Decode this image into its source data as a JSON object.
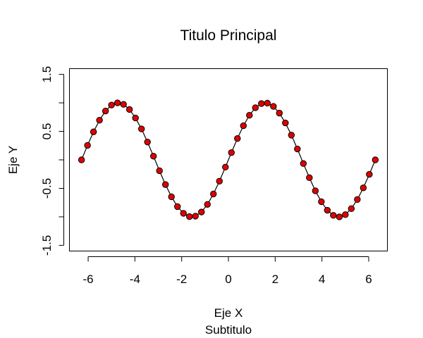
{
  "chart_data": {
    "type": "line",
    "title": "Titulo Principal",
    "subtitle": "Subtitulo",
    "xlabel": "Eje X",
    "ylabel": "Eje Y",
    "xlim": [
      -6.8,
      6.8
    ],
    "ylim": [
      -1.6,
      1.6
    ],
    "xticks": [
      -6,
      -4,
      -2,
      0,
      2,
      4,
      6
    ],
    "xtick_labels": [
      "-6",
      "-4",
      "-2",
      "0",
      "2",
      "4",
      "6"
    ],
    "yticks": [
      -1.5,
      -1,
      -0.5,
      0,
      0.5,
      1,
      1.5
    ],
    "ytick_labels": [
      "-1.5",
      "",
      "-0.5",
      "",
      "0.5",
      "",
      "1.5"
    ],
    "grid": false,
    "series": [
      {
        "style": "line-with-points",
        "line_color": "#000000",
        "point_color": "#e00000",
        "x": [
          -6.2832,
          -6.0268,
          -5.7703,
          -5.5139,
          -5.2574,
          -5.001,
          -4.7445,
          -4.4881,
          -4.2316,
          -3.9752,
          -3.7187,
          -3.4623,
          -3.2058,
          -2.9494,
          -2.6929,
          -2.4365,
          -2.18,
          -1.9236,
          -1.6671,
          -1.4107,
          -1.1542,
          -0.8978,
          -0.6413,
          -0.3849,
          -0.1284,
          0.1284,
          0.3849,
          0.6413,
          0.8978,
          1.1542,
          1.4107,
          1.6671,
          1.9236,
          2.18,
          2.4365,
          2.6929,
          2.9494,
          3.2058,
          3.4623,
          3.7187,
          3.9752,
          4.2316,
          4.4881,
          4.7445,
          5.001,
          5.2574,
          5.5139,
          5.7703,
          6.0268,
          6.2832
        ],
        "y": [
          0.0,
          0.254,
          0.491,
          0.696,
          0.857,
          0.961,
          1.0,
          0.974,
          0.884,
          0.734,
          0.543,
          0.313,
          0.064,
          -0.191,
          -0.434,
          -0.648,
          -0.82,
          -0.938,
          -0.995,
          -0.987,
          -0.915,
          -0.782,
          -0.598,
          -0.375,
          -0.128,
          0.128,
          0.375,
          0.598,
          0.782,
          0.915,
          0.987,
          0.995,
          0.938,
          0.82,
          0.648,
          0.434,
          0.191,
          -0.064,
          -0.313,
          -0.543,
          -0.734,
          -0.884,
          -0.974,
          -1.0,
          -0.961,
          -0.857,
          -0.696,
          -0.491,
          -0.254,
          0.0
        ]
      }
    ]
  }
}
